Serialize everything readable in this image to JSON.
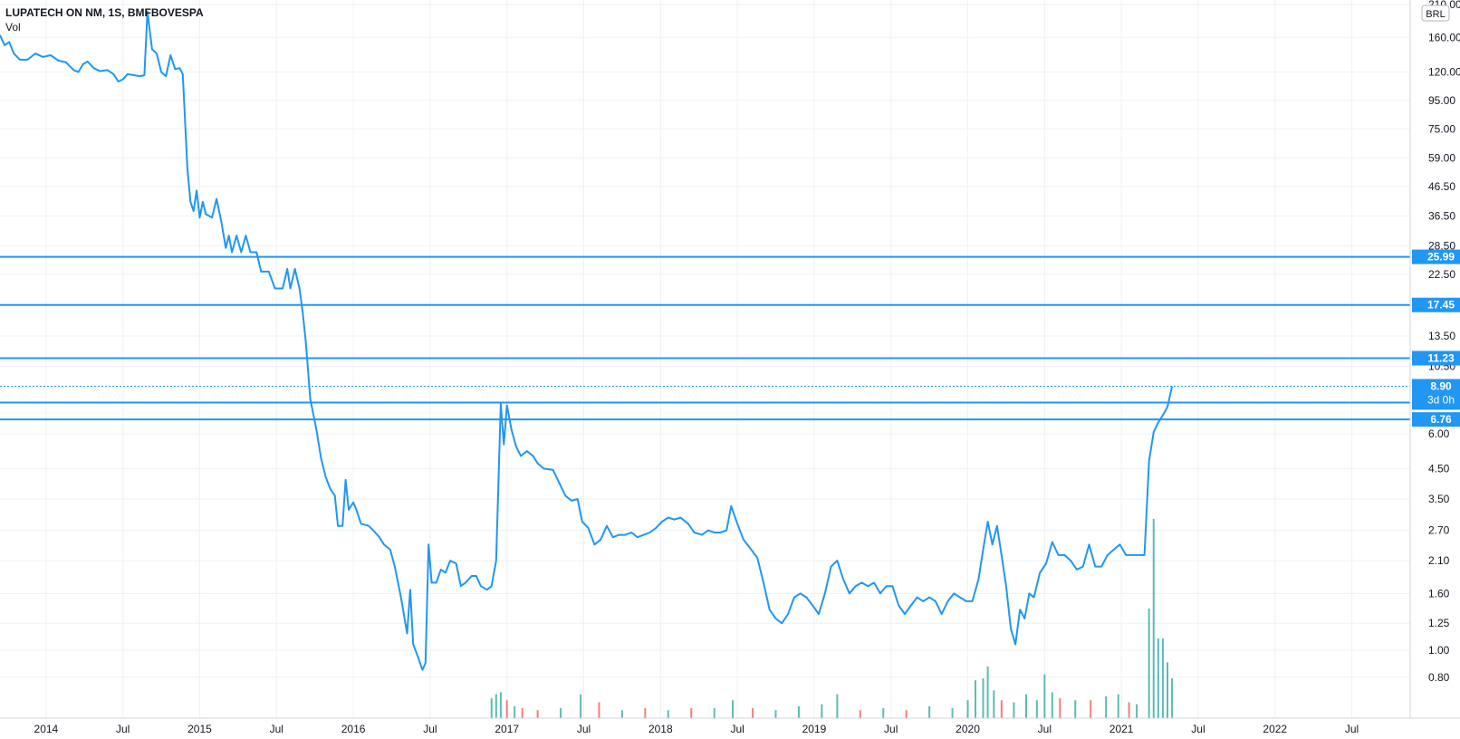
{
  "header": {
    "symbol": "LUPATECH ON NM, 1S, BMFBOVESPA",
    "volume_label": "Vol"
  },
  "currency_badge": "BRL",
  "countdown": "3d 0h",
  "colors": {
    "line": "#2196f3",
    "hline": "#2196f3",
    "grid": "#eef1f5",
    "axis_text": "#131722",
    "vol_up": "#26a69a",
    "vol_down": "#ef5350",
    "badge": "#2196f3"
  },
  "chart_data": {
    "type": "line",
    "scale": "log",
    "ylim": [
      0.72,
      210
    ],
    "x_ticks": [
      "2014",
      "Jul",
      "2015",
      "Jul",
      "2016",
      "Jul",
      "2017",
      "Jul",
      "2018",
      "Jul",
      "2019",
      "Jul",
      "2020",
      "Jul",
      "2021",
      "Jul",
      "2022",
      "Jul"
    ],
    "y_ticks": [
      "210.00",
      "160.00",
      "120.00",
      "95.00",
      "75.00",
      "59.00",
      "46.50",
      "36.50",
      "28.50",
      "22.50",
      "13.50",
      "10.50",
      "6.00",
      "4.50",
      "3.50",
      "2.70",
      "2.10",
      "1.60",
      "1.25",
      "1.00",
      "0.80"
    ],
    "horizontal_levels": [
      "25.99",
      "17.45",
      "11.23",
      "7.78",
      "6.76"
    ],
    "last_price": "8.90",
    "series": [
      {
        "values": [
          [
            2013.7,
            163
          ],
          [
            2013.73,
            150
          ],
          [
            2013.76,
            154
          ],
          [
            2013.79,
            140
          ],
          [
            2013.83,
            133
          ],
          [
            2013.88,
            133
          ],
          [
            2013.93,
            140
          ],
          [
            2013.98,
            136
          ],
          [
            2014.03,
            138
          ],
          [
            2014.08,
            132
          ],
          [
            2014.13,
            130
          ],
          [
            2014.18,
            122
          ],
          [
            2014.21,
            120
          ],
          [
            2014.24,
            128
          ],
          [
            2014.27,
            131
          ],
          [
            2014.31,
            124
          ],
          [
            2014.35,
            121
          ],
          [
            2014.4,
            122
          ],
          [
            2014.44,
            118
          ],
          [
            2014.47,
            111
          ],
          [
            2014.5,
            113
          ],
          [
            2014.53,
            118
          ],
          [
            2014.57,
            117
          ],
          [
            2014.61,
            116
          ],
          [
            2014.64,
            117
          ],
          [
            2014.66,
            198
          ],
          [
            2014.69,
            145
          ],
          [
            2014.72,
            140
          ],
          [
            2014.75,
            120
          ],
          [
            2014.78,
            116
          ],
          [
            2014.81,
            138
          ],
          [
            2014.84,
            123
          ],
          [
            2014.87,
            124
          ],
          [
            2014.89,
            118
          ],
          [
            2014.92,
            54
          ],
          [
            2014.94,
            41
          ],
          [
            2014.96,
            38
          ],
          [
            2014.98,
            45
          ],
          [
            2015.0,
            36
          ],
          [
            2015.02,
            41
          ],
          [
            2015.04,
            37
          ],
          [
            2015.08,
            36
          ],
          [
            2015.11,
            42
          ],
          [
            2015.14,
            35
          ],
          [
            2015.17,
            28
          ],
          [
            2015.19,
            31
          ],
          [
            2015.21,
            27
          ],
          [
            2015.24,
            31
          ],
          [
            2015.27,
            27
          ],
          [
            2015.3,
            31
          ],
          [
            2015.33,
            27
          ],
          [
            2015.37,
            27
          ],
          [
            2015.4,
            23
          ],
          [
            2015.45,
            23
          ],
          [
            2015.49,
            20
          ],
          [
            2015.54,
            20
          ],
          [
            2015.57,
            23.5
          ],
          [
            2015.59,
            20
          ],
          [
            2015.62,
            23.5
          ],
          [
            2015.65,
            20
          ],
          [
            2015.67,
            16.5
          ],
          [
            2015.69,
            13
          ],
          [
            2015.72,
            8
          ],
          [
            2015.76,
            6.2
          ],
          [
            2015.79,
            4.9
          ],
          [
            2015.82,
            4.2
          ],
          [
            2015.85,
            3.8
          ],
          [
            2015.88,
            3.6
          ],
          [
            2015.9,
            2.8
          ],
          [
            2015.93,
            2.8
          ],
          [
            2015.95,
            4.1
          ],
          [
            2015.97,
            3.2
          ],
          [
            2016.0,
            3.4
          ],
          [
            2016.02,
            3.2
          ],
          [
            2016.05,
            2.85
          ],
          [
            2016.1,
            2.8
          ],
          [
            2016.13,
            2.7
          ],
          [
            2016.17,
            2.55
          ],
          [
            2016.2,
            2.4
          ],
          [
            2016.24,
            2.3
          ],
          [
            2016.27,
            2.0
          ],
          [
            2016.31,
            1.55
          ],
          [
            2016.35,
            1.15
          ],
          [
            2016.37,
            1.65
          ],
          [
            2016.39,
            1.05
          ],
          [
            2016.42,
            0.95
          ],
          [
            2016.45,
            0.85
          ],
          [
            2016.47,
            0.9
          ],
          [
            2016.49,
            2.4
          ],
          [
            2016.51,
            1.75
          ],
          [
            2016.54,
            1.75
          ],
          [
            2016.57,
            1.95
          ],
          [
            2016.6,
            1.9
          ],
          [
            2016.63,
            2.1
          ],
          [
            2016.67,
            2.05
          ],
          [
            2016.7,
            1.7
          ],
          [
            2016.73,
            1.75
          ],
          [
            2016.77,
            1.85
          ],
          [
            2016.8,
            1.85
          ],
          [
            2016.83,
            1.7
          ],
          [
            2016.87,
            1.65
          ],
          [
            2016.9,
            1.7
          ],
          [
            2016.93,
            2.1
          ],
          [
            2016.96,
            7.7
          ],
          [
            2016.98,
            5.5
          ],
          [
            2017.0,
            7.6
          ],
          [
            2017.03,
            6.2
          ],
          [
            2017.06,
            5.4
          ],
          [
            2017.09,
            5.0
          ],
          [
            2017.13,
            5.2
          ],
          [
            2017.17,
            5.0
          ],
          [
            2017.2,
            4.7
          ],
          [
            2017.24,
            4.5
          ],
          [
            2017.3,
            4.45
          ],
          [
            2017.34,
            4.0
          ],
          [
            2017.38,
            3.6
          ],
          [
            2017.42,
            3.45
          ],
          [
            2017.46,
            3.5
          ],
          [
            2017.49,
            2.9
          ],
          [
            2017.53,
            2.75
          ],
          [
            2017.57,
            2.4
          ],
          [
            2017.61,
            2.5
          ],
          [
            2017.65,
            2.8
          ],
          [
            2017.69,
            2.55
          ],
          [
            2017.73,
            2.6
          ],
          [
            2017.77,
            2.6
          ],
          [
            2017.81,
            2.65
          ],
          [
            2017.85,
            2.55
          ],
          [
            2017.89,
            2.6
          ],
          [
            2017.93,
            2.65
          ],
          [
            2017.97,
            2.75
          ],
          [
            2018.01,
            2.9
          ],
          [
            2018.05,
            3.0
          ],
          [
            2018.09,
            2.95
          ],
          [
            2018.13,
            3.0
          ],
          [
            2018.18,
            2.85
          ],
          [
            2018.22,
            2.65
          ],
          [
            2018.27,
            2.6
          ],
          [
            2018.31,
            2.7
          ],
          [
            2018.35,
            2.65
          ],
          [
            2018.39,
            2.65
          ],
          [
            2018.43,
            2.7
          ],
          [
            2018.46,
            3.3
          ],
          [
            2018.5,
            2.85
          ],
          [
            2018.54,
            2.5
          ],
          [
            2018.59,
            2.3
          ],
          [
            2018.63,
            2.15
          ],
          [
            2018.67,
            1.75
          ],
          [
            2018.71,
            1.4
          ],
          [
            2018.75,
            1.3
          ],
          [
            2018.79,
            1.25
          ],
          [
            2018.83,
            1.35
          ],
          [
            2018.87,
            1.55
          ],
          [
            2018.91,
            1.6
          ],
          [
            2018.95,
            1.55
          ],
          [
            2018.99,
            1.45
          ],
          [
            2019.03,
            1.35
          ],
          [
            2019.07,
            1.6
          ],
          [
            2019.11,
            2.0
          ],
          [
            2019.15,
            2.1
          ],
          [
            2019.19,
            1.8
          ],
          [
            2019.23,
            1.6
          ],
          [
            2019.27,
            1.7
          ],
          [
            2019.31,
            1.75
          ],
          [
            2019.35,
            1.7
          ],
          [
            2019.39,
            1.75
          ],
          [
            2019.43,
            1.6
          ],
          [
            2019.47,
            1.7
          ],
          [
            2019.51,
            1.7
          ],
          [
            2019.55,
            1.45
          ],
          [
            2019.59,
            1.35
          ],
          [
            2019.63,
            1.45
          ],
          [
            2019.67,
            1.55
          ],
          [
            2019.71,
            1.5
          ],
          [
            2019.75,
            1.55
          ],
          [
            2019.79,
            1.5
          ],
          [
            2019.83,
            1.35
          ],
          [
            2019.87,
            1.5
          ],
          [
            2019.91,
            1.6
          ],
          [
            2019.95,
            1.55
          ],
          [
            2019.99,
            1.5
          ],
          [
            2020.03,
            1.5
          ],
          [
            2020.07,
            1.8
          ],
          [
            2020.1,
            2.3
          ],
          [
            2020.13,
            2.9
          ],
          [
            2020.16,
            2.4
          ],
          [
            2020.19,
            2.8
          ],
          [
            2020.22,
            2.2
          ],
          [
            2020.25,
            1.7
          ],
          [
            2020.28,
            1.2
          ],
          [
            2020.31,
            1.05
          ],
          [
            2020.34,
            1.4
          ],
          [
            2020.37,
            1.3
          ],
          [
            2020.4,
            1.6
          ],
          [
            2020.43,
            1.55
          ],
          [
            2020.47,
            1.9
          ],
          [
            2020.51,
            2.05
          ],
          [
            2020.55,
            2.45
          ],
          [
            2020.59,
            2.2
          ],
          [
            2020.63,
            2.2
          ],
          [
            2020.67,
            2.1
          ],
          [
            2020.71,
            1.95
          ],
          [
            2020.75,
            2.0
          ],
          [
            2020.79,
            2.4
          ],
          [
            2020.83,
            2.0
          ],
          [
            2020.87,
            2.0
          ],
          [
            2020.91,
            2.2
          ],
          [
            2020.95,
            2.3
          ],
          [
            2020.99,
            2.4
          ],
          [
            2021.03,
            2.2
          ],
          [
            2021.07,
            2.2
          ],
          [
            2021.11,
            2.2
          ],
          [
            2021.15,
            2.2
          ],
          [
            2021.18,
            4.8
          ],
          [
            2021.21,
            6.1
          ],
          [
            2021.24,
            6.6
          ],
          [
            2021.27,
            7.0
          ],
          [
            2021.3,
            7.5
          ],
          [
            2021.33,
            8.9
          ]
        ]
      }
    ],
    "volume": [
      [
        2016.9,
        0.1,
        "up"
      ],
      [
        2016.93,
        0.12,
        "up"
      ],
      [
        2016.96,
        0.13,
        "up"
      ],
      [
        2017.0,
        0.09,
        "down"
      ],
      [
        2017.05,
        0.06,
        "up"
      ],
      [
        2017.1,
        0.05,
        "down"
      ],
      [
        2017.2,
        0.04,
        "down"
      ],
      [
        2017.35,
        0.05,
        "up"
      ],
      [
        2017.48,
        0.12,
        "up"
      ],
      [
        2017.6,
        0.08,
        "down"
      ],
      [
        2017.75,
        0.04,
        "up"
      ],
      [
        2017.9,
        0.05,
        "down"
      ],
      [
        2018.05,
        0.04,
        "up"
      ],
      [
        2018.2,
        0.05,
        "down"
      ],
      [
        2018.35,
        0.05,
        "up"
      ],
      [
        2018.47,
        0.09,
        "up"
      ],
      [
        2018.6,
        0.05,
        "down"
      ],
      [
        2018.75,
        0.04,
        "up"
      ],
      [
        2018.9,
        0.06,
        "up"
      ],
      [
        2019.05,
        0.07,
        "up"
      ],
      [
        2019.15,
        0.12,
        "up"
      ],
      [
        2019.3,
        0.04,
        "down"
      ],
      [
        2019.45,
        0.05,
        "up"
      ],
      [
        2019.6,
        0.04,
        "down"
      ],
      [
        2019.75,
        0.06,
        "up"
      ],
      [
        2019.9,
        0.05,
        "up"
      ],
      [
        2020.0,
        0.09,
        "up"
      ],
      [
        2020.05,
        0.19,
        "up"
      ],
      [
        2020.1,
        0.2,
        "up"
      ],
      [
        2020.13,
        0.26,
        "up"
      ],
      [
        2020.17,
        0.14,
        "up"
      ],
      [
        2020.22,
        0.09,
        "down"
      ],
      [
        2020.3,
        0.08,
        "up"
      ],
      [
        2020.38,
        0.12,
        "up"
      ],
      [
        2020.45,
        0.09,
        "up"
      ],
      [
        2020.5,
        0.22,
        "up"
      ],
      [
        2020.55,
        0.13,
        "up"
      ],
      [
        2020.6,
        0.1,
        "down"
      ],
      [
        2020.7,
        0.09,
        "up"
      ],
      [
        2020.8,
        0.09,
        "down"
      ],
      [
        2020.9,
        0.11,
        "up"
      ],
      [
        2020.98,
        0.12,
        "up"
      ],
      [
        2021.05,
        0.08,
        "down"
      ],
      [
        2021.1,
        0.07,
        "up"
      ],
      [
        2021.18,
        0.55,
        "up"
      ],
      [
        2021.21,
        1.0,
        "up"
      ],
      [
        2021.24,
        0.4,
        "up"
      ],
      [
        2021.27,
        0.4,
        "up"
      ],
      [
        2021.3,
        0.28,
        "up"
      ],
      [
        2021.33,
        0.2,
        "up"
      ]
    ]
  }
}
